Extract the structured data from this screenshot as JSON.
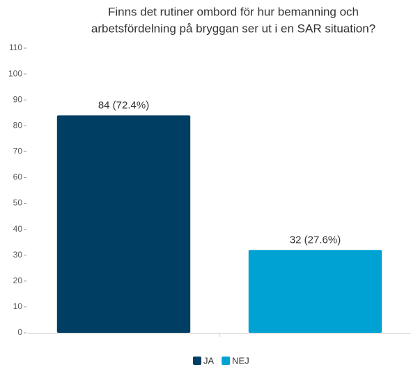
{
  "chart_data": {
    "type": "bar",
    "title": [
      "Finns det rutiner ombord för hur bemanning och",
      "arbetsfördelning på bryggan ser ut i en SAR situation?"
    ],
    "categories": [
      "JA",
      "NEJ"
    ],
    "values": [
      84,
      32
    ],
    "value_labels": [
      "84 (72.4%)",
      "32 (27.6%)"
    ],
    "colors": [
      "#003f63",
      "#00a2d4"
    ],
    "ylim": [
      0,
      110
    ],
    "yticks": [
      0,
      10,
      20,
      30,
      40,
      50,
      60,
      70,
      80,
      90,
      100,
      110
    ],
    "grid": false,
    "legend": "bottom"
  }
}
